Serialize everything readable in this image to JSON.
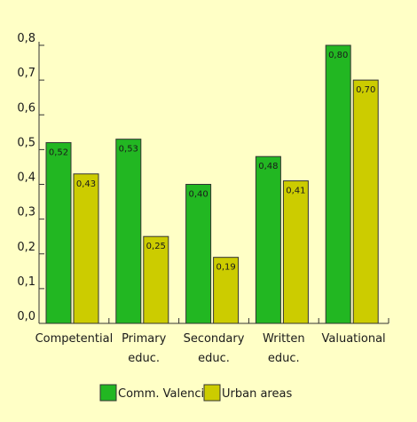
{
  "chart_data": {
    "type": "bar",
    "categories": [
      [
        "Competential"
      ],
      [
        "Primary",
        "educ."
      ],
      [
        "Secondary",
        "educ."
      ],
      [
        "Written",
        "educ."
      ],
      [
        "Valuational"
      ]
    ],
    "series": [
      {
        "name": "Comm. Valencia",
        "values": [
          0.52,
          0.53,
          0.4,
          0.48,
          0.8
        ],
        "labels": [
          "0,52",
          "0,53",
          "0,40",
          "0,48",
          "0,80"
        ]
      },
      {
        "name": "Urban areas",
        "values": [
          0.43,
          0.25,
          0.19,
          0.41,
          0.7
        ],
        "labels": [
          "0,43",
          "0,25",
          "0,19",
          "0,41",
          "0,70"
        ]
      }
    ],
    "ylim": [
      0,
      0.8
    ],
    "yticks": [
      "0,0",
      "0,1",
      "0,2",
      "0,3",
      "0,4",
      "0,5",
      "0,6",
      "0,7",
      "0,8"
    ],
    "title": "",
    "xlabel": "",
    "ylabel": "",
    "legend_position": "bottom-center",
    "grid": false,
    "colors": {
      "series": [
        "#22b722",
        "#cccc00"
      ],
      "border": "#333333",
      "background": "#ffffc6"
    }
  }
}
